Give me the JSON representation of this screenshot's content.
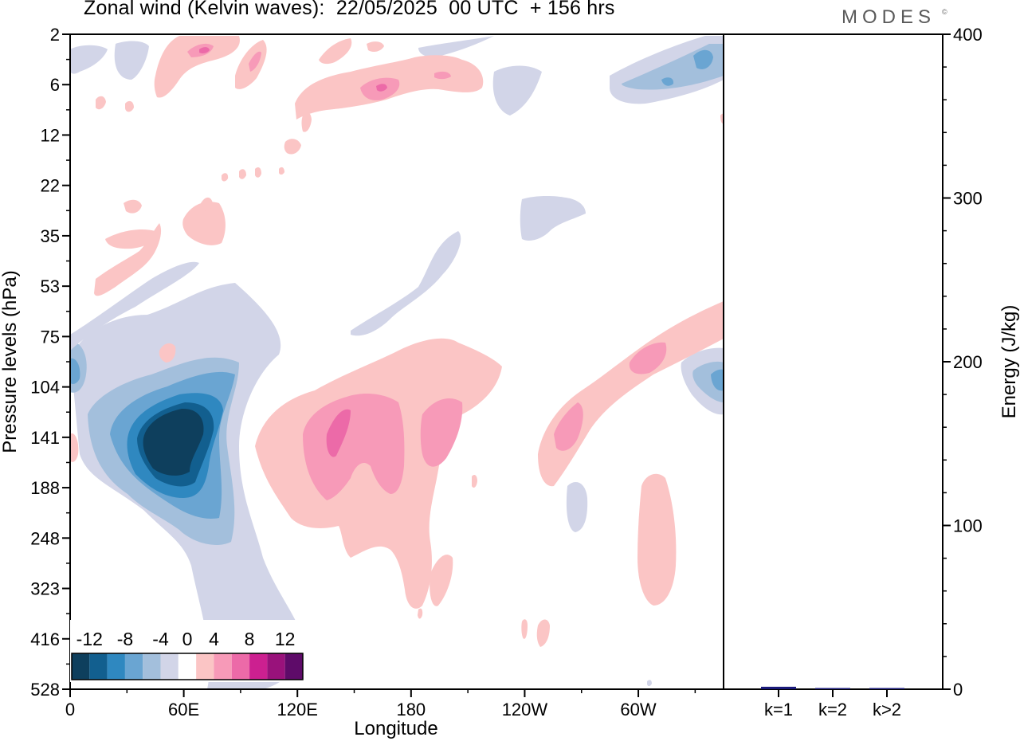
{
  "title": "Zonal wind (Kelvin waves):  22/05/2025  00 UTC  + 156 hrs",
  "brand": "MODES",
  "brand_mark": "©",
  "chart_data": [
    {
      "type": "heatmap",
      "title": "Zonal wind (Kelvin waves):  22/05/2025  00 UTC  + 156 hrs",
      "xlabel": "Longitude",
      "ylabel": "Pressure levels (hPa)",
      "x_ticks": [
        "0",
        "60E",
        "120E",
        "180",
        "120W",
        "60W"
      ],
      "x_tick_degrees": [
        0,
        60,
        120,
        180,
        240,
        300
      ],
      "xlim": [
        0,
        345
      ],
      "y_ticks": [
        "2",
        "6",
        "12",
        "22",
        "35",
        "53",
        "75",
        "104",
        "141",
        "188",
        "248",
        "323",
        "416",
        "528"
      ],
      "y_scale": "categorical pressure levels, 2 hPa at top to 528 hPa at bottom",
      "colorbar": {
        "labels": [
          "-12",
          "-8",
          "-4",
          "0",
          "4",
          "8",
          "12"
        ],
        "levels": [
          -14,
          -12,
          -10,
          -8,
          -6,
          -4,
          -2,
          2,
          4,
          6,
          8,
          10,
          12,
          14
        ],
        "colors": [
          "#0e3f5d",
          "#125f8f",
          "#2f88c0",
          "#6aa5d2",
          "#a3bfdc",
          "#d2d5e8",
          "#ffffff",
          "#fbc5c5",
          "#f79ab8",
          "#ec6aa8",
          "#cc2090",
          "#99127b",
          "#5e0b69"
        ],
        "placement": "bottom-left inside plot"
      },
      "features": [
        {
          "sign": "negative",
          "lon": [
            35,
            80
          ],
          "level": "141",
          "min_value": -14
        },
        {
          "sign": "positive",
          "lon": [
            115,
            175
          ],
          "level": "141",
          "max_value": 8
        },
        {
          "sign": "positive",
          "lon": [
            265,
            345
          ],
          "level": "75",
          "max_value": 6
        }
      ]
    },
    {
      "type": "bar",
      "title": "",
      "xlabel": "",
      "ylabel": "Energy (J/kg)",
      "categories": [
        "k=1",
        "k=2",
        "k>2"
      ],
      "values": [
        1.5,
        0.4,
        0.3
      ],
      "ylim": [
        0,
        400
      ],
      "y_ticks": [
        "0",
        "100",
        "200",
        "300",
        "400"
      ],
      "bar_color": "#1a1a7a"
    }
  ]
}
